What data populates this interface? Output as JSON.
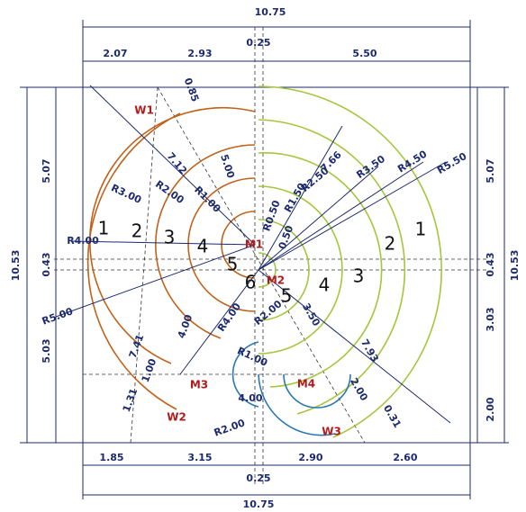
{
  "top": [
    "10.75",
    "0.25",
    "2.07",
    "2.93",
    "5.50",
    "0.85"
  ],
  "bottom": [
    "1.85",
    "3.15",
    "0.25",
    "2.90",
    "2.60",
    "10.75"
  ],
  "left": [
    "10.53",
    "5.07",
    "0.43",
    "5.03"
  ],
  "right": [
    "5.07",
    "10.53",
    "0.43",
    "3.03",
    "2.00"
  ],
  "upper_labels": [
    "R4.00",
    "R3.00",
    "R2.00",
    "R1.00",
    "R5.00",
    "7.12",
    "5.00",
    "R1.50",
    "R0.50",
    "0.50",
    "R2.50",
    "7.66",
    "R3.50",
    "R4.50",
    "R5.50"
  ],
  "lower_labels": [
    "7.41",
    "4.00",
    "1.00",
    "1.31",
    "R4.00",
    "R2.00",
    "3.50",
    "7.93",
    "R1.00",
    "2.00",
    "0.31",
    "4.00",
    "R2.00"
  ],
  "points": [
    "W1",
    "W2",
    "W3",
    "M1",
    "M2",
    "M3",
    "M4"
  ],
  "regions": [
    "1",
    "2",
    "3",
    "4",
    "5",
    "6",
    "5",
    "4",
    "3",
    "2",
    "1"
  ]
}
